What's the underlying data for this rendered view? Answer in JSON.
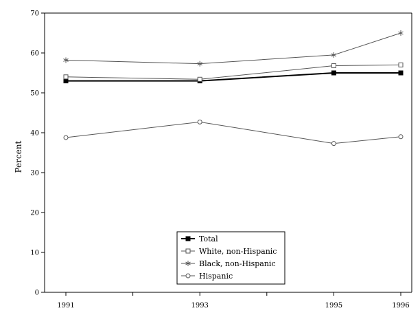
{
  "chart_data": {
    "type": "line",
    "x": [
      1991,
      1993,
      1995,
      1996
    ],
    "x_tick_labels": [
      "1991",
      "1993",
      "1995",
      "1996"
    ],
    "xlim": [
      1991,
      1996
    ],
    "ylim": [
      0,
      70
    ],
    "y_ticks": [
      0,
      10,
      20,
      30,
      40,
      50,
      60,
      70
    ],
    "ylabel": "Percent",
    "xlabel": "",
    "grid": false,
    "legend_position": "bottom-center",
    "series": [
      {
        "name": "Total",
        "values": [
          53.0,
          53.0,
          55.0,
          55.0
        ],
        "marker": "filled-square",
        "color": "#000000",
        "stroke_weight": "heavy"
      },
      {
        "name": "White, non-Hispanic",
        "values": [
          54.0,
          53.4,
          56.8,
          57.0
        ],
        "marker": "open-square",
        "color": "#555555",
        "stroke_weight": "light"
      },
      {
        "name": "Black, non-Hispanic",
        "values": [
          58.2,
          57.3,
          59.5,
          65.0
        ],
        "marker": "star",
        "color": "#555555",
        "stroke_weight": "light"
      },
      {
        "name": "Hispanic",
        "values": [
          38.8,
          42.7,
          37.3,
          39.0
        ],
        "marker": "open-circle",
        "color": "#555555",
        "stroke_weight": "light"
      }
    ]
  }
}
